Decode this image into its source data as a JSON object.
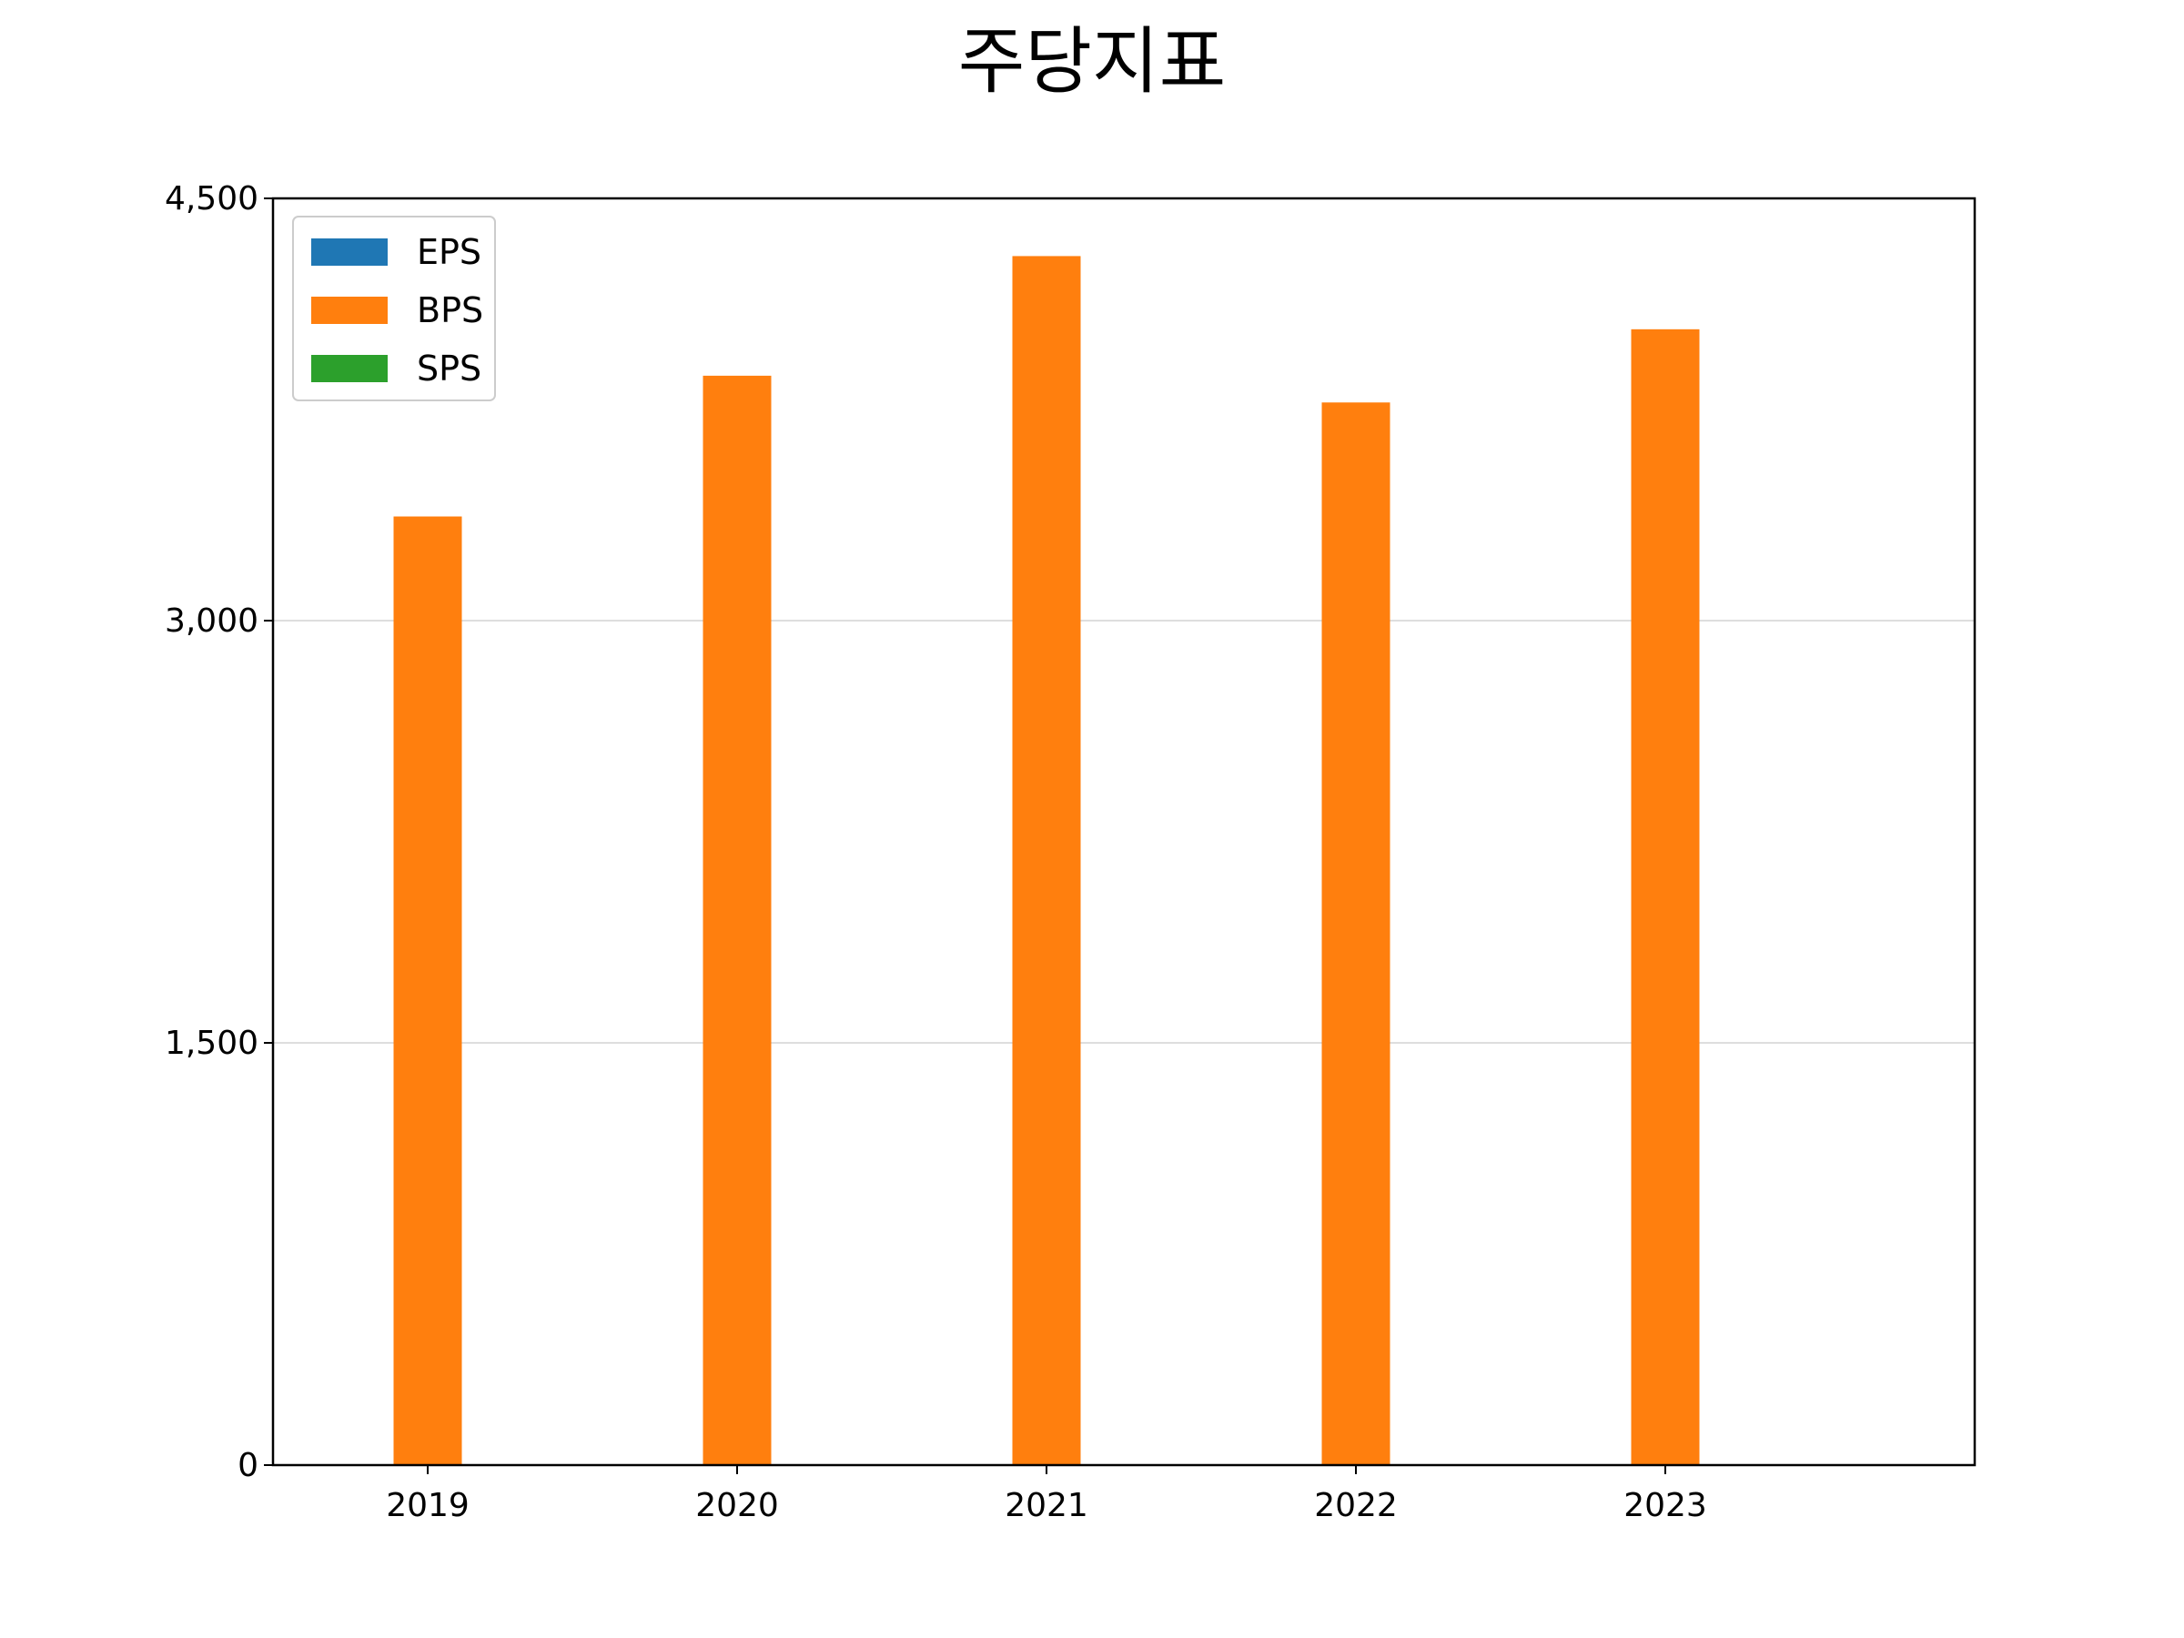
{
  "chart_data": {
    "type": "bar",
    "title": "주당지표",
    "xlabel": "",
    "ylabel": "",
    "categories": [
      "2019",
      "2020",
      "2021",
      "2022",
      "2023"
    ],
    "series": [
      {
        "name": "EPS",
        "color": "#1f77b4",
        "values": [
          0,
          0,
          0,
          0,
          0
        ]
      },
      {
        "name": "BPS",
        "color": "#ff7f0e",
        "values": [
          3370,
          3870,
          4295,
          3775,
          4035
        ]
      },
      {
        "name": "SPS",
        "color": "#2ca02c",
        "values": [
          0,
          0,
          0,
          0,
          0
        ]
      }
    ],
    "ylim": [
      0,
      4500
    ],
    "yticks": [
      0,
      1500,
      3000,
      4500
    ],
    "ytick_labels": [
      "0",
      "1,500",
      "3,000",
      "4,500"
    ],
    "grid": "horizontal",
    "legend_position": "top-left"
  }
}
